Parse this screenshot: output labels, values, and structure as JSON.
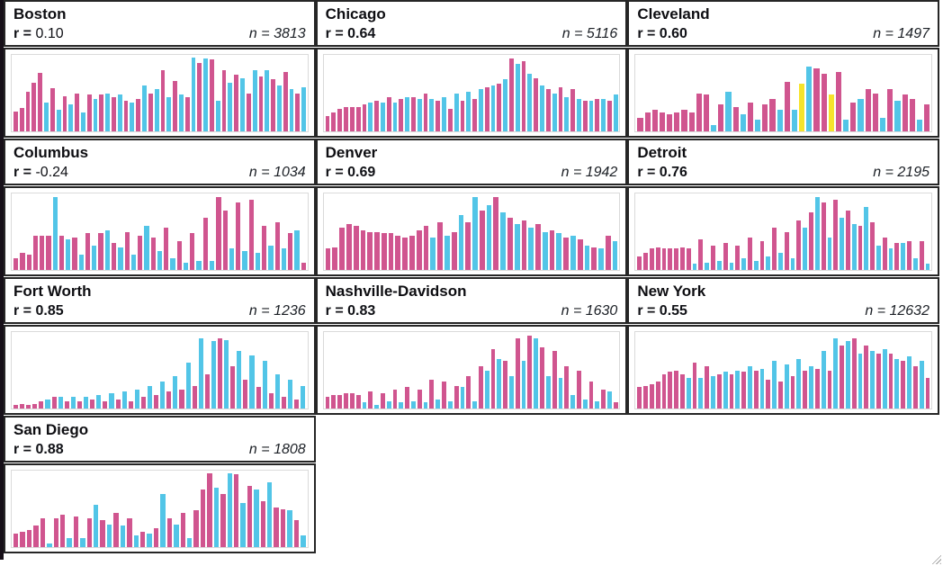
{
  "labels": {
    "r_prefix": "r = ",
    "n_prefix": "n = "
  },
  "colors": {
    "pink": "#d0558f",
    "cyan": "#52c5e7",
    "yellow": "#f6e32b",
    "panel_border": "#262626",
    "plot_frame": "#dadada",
    "text": "#0e0e12",
    "window_edge": "#171019"
  },
  "chart_data": [
    {
      "type": "bar",
      "title": "Boston",
      "r": "0.10",
      "n": "3813",
      "r_bold": false,
      "ylim": [
        0,
        100
      ],
      "grid": false,
      "axis_labels": "none",
      "bar_heights_pct": [
        26,
        31,
        52,
        63,
        76,
        38,
        56,
        28,
        46,
        35,
        50,
        25,
        48,
        42,
        48,
        50,
        45,
        48,
        40,
        38,
        42,
        60,
        50,
        55,
        80,
        45,
        66,
        48,
        45,
        96,
        90,
        95,
        94,
        40,
        80,
        64,
        74,
        70,
        50,
        80,
        72,
        80,
        68,
        60,
        78,
        55,
        50,
        58
      ],
      "bar_colors": "pppppcpcpcpcpcpcpcpcpcpcpcpcpcpcpcpcpcpcpcpcpcpc"
    },
    {
      "type": "bar",
      "title": "Chicago",
      "r": "0.64",
      "n": "5116",
      "r_bold": true,
      "ylim": [
        0,
        100
      ],
      "grid": false,
      "axis_labels": "none",
      "bar_heights_pct": [
        20,
        25,
        30,
        32,
        32,
        32,
        35,
        38,
        40,
        38,
        45,
        38,
        42,
        45,
        45,
        42,
        50,
        42,
        40,
        45,
        30,
        50,
        40,
        52,
        42,
        55,
        58,
        60,
        62,
        68,
        95,
        88,
        92,
        75,
        70,
        60,
        55,
        50,
        58,
        45,
        55,
        42,
        40,
        40,
        42,
        42,
        40,
        48
      ],
      "bar_colors": "pppppppcpcpcpcpcpcpcpcpcpcpcpcpcpcpcpcpcpcpcpcpc"
    },
    {
      "type": "bar",
      "title": "Cleveland",
      "r": "0.60",
      "n": "1497",
      "r_bold": true,
      "ylim": [
        0,
        100
      ],
      "grid": false,
      "axis_labels": "none",
      "bar_heights_pct": [
        18,
        25,
        28,
        25,
        22,
        25,
        28,
        25,
        50,
        48,
        8,
        35,
        52,
        32,
        22,
        38,
        15,
        35,
        42,
        28,
        65,
        28,
        62,
        85,
        82,
        75,
        48,
        78,
        15,
        38,
        42,
        55,
        50,
        18,
        55,
        40,
        48,
        42,
        15,
        35
      ],
      "bar_colors": "ppppppppppcpcpcpcppcpcycppypcpcppcpcppcp"
    },
    {
      "type": "bar",
      "title": "Columbus",
      "r": "-0.24",
      "n": "1034",
      "r_bold": false,
      "ylim": [
        0,
        100
      ],
      "grid": false,
      "axis_labels": "none",
      "bar_heights_pct": [
        15,
        22,
        20,
        45,
        45,
        45,
        95,
        45,
        40,
        42,
        20,
        48,
        32,
        48,
        52,
        35,
        30,
        50,
        20,
        45,
        58,
        42,
        25,
        55,
        15,
        38,
        10,
        48,
        12,
        68,
        12,
        95,
        78,
        28,
        88,
        25,
        92,
        22,
        58,
        32,
        62,
        28,
        48,
        52,
        10
      ],
      "bar_colors": "ppppppcpcpcpcpcpcpcpcpcpcpcpcpcppcpcpcpcpcpcp"
    },
    {
      "type": "bar",
      "title": "Denver",
      "r": "0.69",
      "n": "1942",
      "r_bold": true,
      "ylim": [
        0,
        100
      ],
      "grid": false,
      "axis_labels": "none",
      "bar_heights_pct": [
        28,
        30,
        55,
        60,
        58,
        52,
        50,
        50,
        48,
        48,
        45,
        42,
        45,
        52,
        58,
        42,
        62,
        45,
        50,
        72,
        62,
        95,
        78,
        85,
        95,
        75,
        68,
        60,
        65,
        55,
        60,
        50,
        52,
        48,
        42,
        45,
        40,
        32,
        30,
        28,
        45,
        38
      ],
      "bar_colors": "pppppppppppppppcpcpcpcpcpcpcpcpcpcpcpcpcpc"
    },
    {
      "type": "bar",
      "title": "Detroit",
      "r": "0.76",
      "n": "2195",
      "r_bold": true,
      "ylim": [
        0,
        100
      ],
      "grid": false,
      "axis_labels": "none",
      "bar_heights_pct": [
        18,
        22,
        28,
        30,
        28,
        28,
        28,
        30,
        28,
        8,
        40,
        10,
        32,
        12,
        35,
        10,
        32,
        15,
        42,
        12,
        38,
        18,
        55,
        22,
        50,
        15,
        65,
        55,
        75,
        95,
        88,
        42,
        92,
        68,
        78,
        60,
        58,
        82,
        62,
        32,
        42,
        28,
        35,
        35,
        38,
        15,
        38,
        8
      ],
      "bar_colors": "pppppppppcpcpcpcpcpcpcpcpcpcpcpcpcpcpcpcpcpcpcpc"
    },
    {
      "type": "bar",
      "title": "Fort Worth",
      "r": "0.85",
      "n": "1236",
      "r_bold": true,
      "ylim": [
        0,
        100
      ],
      "grid": false,
      "axis_labels": "none",
      "bar_heights_pct": [
        5,
        6,
        5,
        6,
        10,
        12,
        15,
        15,
        10,
        15,
        10,
        15,
        12,
        18,
        10,
        20,
        12,
        22,
        10,
        25,
        15,
        30,
        18,
        35,
        22,
        42,
        25,
        60,
        30,
        92,
        45,
        88,
        92,
        90,
        55,
        75,
        38,
        70,
        28,
        62,
        20,
        45,
        15,
        38,
        12,
        30
      ],
      "bar_colors": "pppppcpcpcpcpcpcpcpcpcpcpcpcpcpcpcpcpcpcpcpcpc"
    },
    {
      "type": "bar",
      "title": "Nashville-Davidson",
      "r": "0.83",
      "n": "1630",
      "r_bold": true,
      "ylim": [
        0,
        100
      ],
      "grid": false,
      "axis_labels": "none",
      "bar_heights_pct": [
        15,
        18,
        18,
        20,
        20,
        18,
        8,
        22,
        5,
        20,
        10,
        25,
        8,
        28,
        10,
        25,
        8,
        38,
        12,
        35,
        10,
        30,
        28,
        42,
        10,
        55,
        50,
        78,
        65,
        62,
        42,
        92,
        62,
        95,
        92,
        80,
        42,
        75,
        40,
        55,
        18,
        50,
        12,
        35,
        10,
        25,
        22,
        8
      ],
      "bar_colors": "ppppppcpcpcpcpcpcpcpcpcpcpcpcpcpcpcpcpcpcpcpcpcp"
    },
    {
      "type": "bar",
      "title": "New York",
      "r": "0.55",
      "n": "12632",
      "r_bold": true,
      "ylim": [
        0,
        100
      ],
      "grid": false,
      "axis_labels": "none",
      "bar_heights_pct": [
        28,
        30,
        32,
        35,
        45,
        48,
        50,
        45,
        40,
        60,
        40,
        55,
        42,
        45,
        48,
        45,
        50,
        48,
        55,
        50,
        52,
        38,
        62,
        35,
        58,
        42,
        65,
        50,
        55,
        52,
        75,
        50,
        92,
        82,
        88,
        92,
        72,
        82,
        75,
        72,
        78,
        72,
        65,
        62,
        68,
        55,
        62,
        40
      ],
      "bar_colors": "ppppppppcpcpcpcpcpcpcpcpcpcpcpcpcpcpcpcpcpcpcpcp"
    },
    {
      "type": "bar",
      "title": "San Diego",
      "r": "0.88",
      "n": "1808",
      "r_bold": true,
      "ylim": [
        0,
        100
      ],
      "grid": false,
      "axis_labels": "none",
      "bar_heights_pct": [
        18,
        20,
        22,
        28,
        38,
        5,
        38,
        42,
        12,
        40,
        12,
        38,
        55,
        35,
        30,
        45,
        28,
        38,
        15,
        20,
        18,
        25,
        70,
        38,
        30,
        45,
        12,
        48,
        75,
        97,
        78,
        70,
        97,
        95,
        58,
        80,
        75,
        60,
        85,
        52,
        50,
        48,
        35,
        15
      ],
      "bar_colors": "pppppcppcpcpcpcpcpcpcpcpcpcpppcpcpcpcpcppcpc"
    }
  ]
}
